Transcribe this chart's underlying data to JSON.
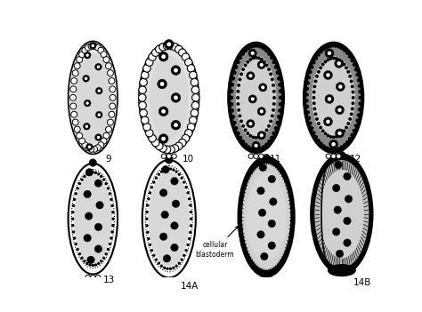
{
  "background_color": "#ffffff",
  "fig_width": 4.74,
  "fig_height": 3.51,
  "dpi": 100,
  "label_annotation": "cellular\nblastoderm"
}
